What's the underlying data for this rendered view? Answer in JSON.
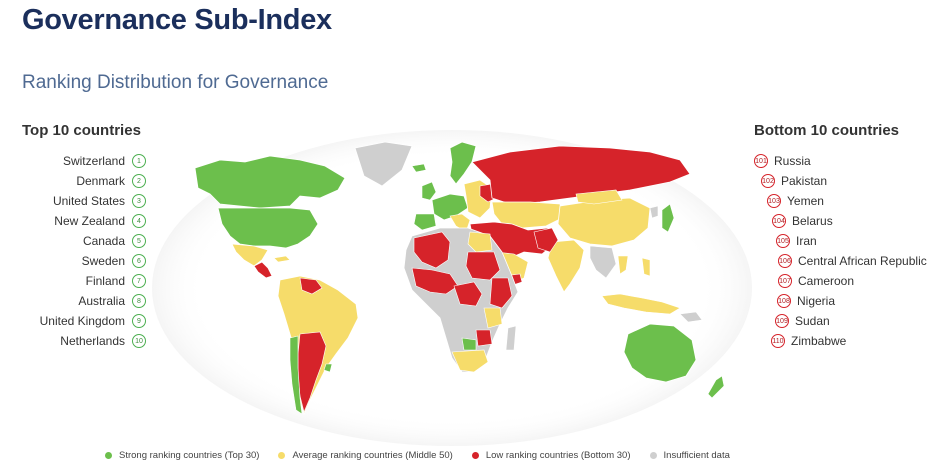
{
  "header": {
    "title": "Governance Sub-Index",
    "subtitle": "Ranking Distribution for Governance"
  },
  "top": {
    "heading": "Top 10 countries",
    "items": [
      {
        "name": "Switzerland",
        "rank": "1"
      },
      {
        "name": "Denmark",
        "rank": "2"
      },
      {
        "name": "United States",
        "rank": "3"
      },
      {
        "name": "New Zealand",
        "rank": "4"
      },
      {
        "name": "Canada",
        "rank": "5"
      },
      {
        "name": "Sweden",
        "rank": "6"
      },
      {
        "name": "Finland",
        "rank": "7"
      },
      {
        "name": "Australia",
        "rank": "8"
      },
      {
        "name": "United Kingdom",
        "rank": "9"
      },
      {
        "name": "Netherlands",
        "rank": "10"
      }
    ]
  },
  "bottom": {
    "heading": "Bottom 10 countries",
    "items": [
      {
        "name": "Russia",
        "rank": "101"
      },
      {
        "name": "Pakistan",
        "rank": "102"
      },
      {
        "name": "Yemen",
        "rank": "103"
      },
      {
        "name": "Belarus",
        "rank": "104"
      },
      {
        "name": "Iran",
        "rank": "105"
      },
      {
        "name": "Central African Republic",
        "rank": "106"
      },
      {
        "name": "Cameroon",
        "rank": "107"
      },
      {
        "name": "Nigeria",
        "rank": "108"
      },
      {
        "name": "Sudan",
        "rank": "109"
      },
      {
        "name": "Zimbabwe",
        "rank": "110"
      }
    ]
  },
  "legend": [
    {
      "label": "Strong ranking countries (Top 30)",
      "color": "#6cbf4c"
    },
    {
      "label": "Average ranking countries (Middle 50)",
      "color": "#f6dc6a"
    },
    {
      "label": "Low ranking countries (Bottom 30)",
      "color": "#d6232a"
    },
    {
      "label": "Insufficient data",
      "color": "#cfcfcf"
    }
  ],
  "colors": {
    "strong": "#6cbf4c",
    "average": "#f6dc6a",
    "low": "#d6232a",
    "none": "#cfcfcf"
  }
}
